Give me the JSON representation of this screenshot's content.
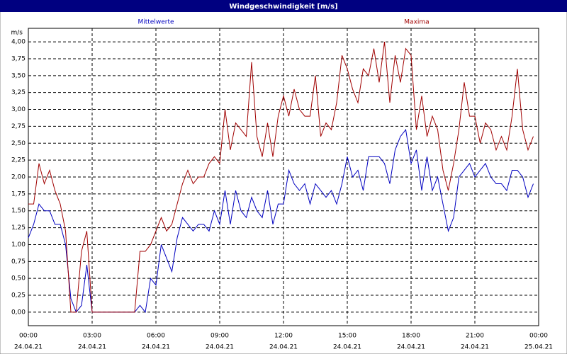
{
  "chart_data": {
    "type": "line",
    "title": "Windgeschwindigkeit [m/s]",
    "y_unit": "m/s",
    "xlim": [
      0,
      24
    ],
    "ylim": [
      -0.2,
      4.2
    ],
    "grid": true,
    "xticks": [
      {
        "value": 0,
        "label": "00:00",
        "date": "24.04.21"
      },
      {
        "value": 3,
        "label": "03:00",
        "date": "24.04.21"
      },
      {
        "value": 6,
        "label": "06:00",
        "date": "24.04.21"
      },
      {
        "value": 9,
        "label": "09:00",
        "date": "24.04.21"
      },
      {
        "value": 12,
        "label": "12:00",
        "date": "24.04.21"
      },
      {
        "value": 15,
        "label": "15:00",
        "date": "24.04.21"
      },
      {
        "value": 18,
        "label": "18:00",
        "date": "24.04.21"
      },
      {
        "value": 21,
        "label": "21:00",
        "date": "24.04.21"
      },
      {
        "value": 24,
        "label": "00:00",
        "date": "25.04.21"
      }
    ],
    "yticks": [
      {
        "value": 0,
        "label": "0,00"
      },
      {
        "value": 0.25,
        "label": "0,25"
      },
      {
        "value": 0.5,
        "label": "0,50"
      },
      {
        "value": 0.75,
        "label": "0,75"
      },
      {
        "value": 1,
        "label": "1,00"
      },
      {
        "value": 1.25,
        "label": "1,25"
      },
      {
        "value": 1.5,
        "label": "1,50"
      },
      {
        "value": 1.75,
        "label": "1,75"
      },
      {
        "value": 2,
        "label": "2,00"
      },
      {
        "value": 2.25,
        "label": "2,25"
      },
      {
        "value": 2.5,
        "label": "2,50"
      },
      {
        "value": 2.75,
        "label": "2,75"
      },
      {
        "value": 3,
        "label": "3,00"
      },
      {
        "value": 3.25,
        "label": "3,25"
      },
      {
        "value": 3.5,
        "label": "3,50"
      },
      {
        "value": 3.75,
        "label": "3,75"
      },
      {
        "value": 4,
        "label": "4,00"
      }
    ],
    "x": [
      0,
      0.25,
      0.5,
      0.75,
      1,
      1.25,
      1.5,
      1.75,
      2,
      2.25,
      2.5,
      2.75,
      3,
      3.25,
      3.5,
      3.75,
      4,
      4.25,
      4.5,
      4.75,
      5,
      5.25,
      5.5,
      5.75,
      6,
      6.25,
      6.5,
      6.75,
      7,
      7.25,
      7.5,
      7.75,
      8,
      8.25,
      8.5,
      8.75,
      9,
      9.25,
      9.5,
      9.75,
      10,
      10.25,
      10.5,
      10.75,
      11,
      11.25,
      11.5,
      11.75,
      12,
      12.25,
      12.5,
      12.75,
      13,
      13.25,
      13.5,
      13.75,
      14,
      14.25,
      14.5,
      14.75,
      15,
      15.25,
      15.5,
      15.75,
      16,
      16.25,
      16.5,
      16.75,
      17,
      17.25,
      17.5,
      17.75,
      18,
      18.25,
      18.5,
      18.75,
      19,
      19.25,
      19.5,
      19.75,
      20,
      20.25,
      20.5,
      20.75,
      21,
      21.25,
      21.5,
      21.75,
      22,
      22.25,
      22.5,
      22.75,
      23,
      23.25,
      23.5,
      23.75
    ],
    "series": [
      {
        "name": "Mittelwerte",
        "color": "#0000c0",
        "values": [
          1.1,
          1.3,
          1.6,
          1.5,
          1.5,
          1.3,
          1.3,
          1.0,
          0.2,
          0,
          0.1,
          0.7,
          0,
          0,
          0,
          0,
          0,
          0,
          0,
          0,
          0,
          0.1,
          0,
          0.5,
          0.4,
          1.0,
          0.8,
          0.6,
          1.1,
          1.4,
          1.3,
          1.2,
          1.3,
          1.3,
          1.2,
          1.5,
          1.3,
          1.8,
          1.3,
          1.8,
          1.5,
          1.4,
          1.7,
          1.5,
          1.4,
          1.8,
          1.3,
          1.6,
          1.6,
          2.1,
          1.9,
          1.8,
          1.9,
          1.6,
          1.9,
          1.8,
          1.7,
          1.8,
          1.6,
          1.9,
          2.3,
          2.0,
          2.1,
          1.8,
          2.3,
          2.3,
          2.3,
          2.2,
          1.9,
          2.4,
          2.6,
          2.7,
          2.2,
          2.4,
          1.8,
          2.3,
          1.8,
          2.0,
          1.6,
          1.2,
          1.4,
          2.0,
          2.1,
          2.2,
          2.0,
          2.1,
          2.2,
          2.0,
          1.9,
          1.9,
          1.8,
          2.1,
          2.1,
          2.0,
          1.7,
          1.9
        ]
      },
      {
        "name": "Maxima",
        "color": "#a00000",
        "values": [
          1.6,
          1.6,
          2.2,
          1.9,
          2.1,
          1.8,
          1.6,
          1.2,
          0,
          0,
          0.9,
          1.2,
          0,
          0,
          0,
          0,
          0,
          0,
          0,
          0,
          0,
          0.9,
          0.9,
          1.0,
          1.2,
          1.4,
          1.2,
          1.3,
          1.6,
          1.9,
          2.1,
          1.9,
          2.0,
          2.0,
          2.2,
          2.3,
          2.2,
          3.0,
          2.4,
          2.8,
          2.7,
          2.6,
          3.7,
          2.6,
          2.3,
          2.8,
          2.3,
          2.9,
          3.2,
          2.9,
          3.3,
          3.0,
          2.9,
          2.9,
          3.5,
          2.6,
          2.8,
          2.7,
          3.1,
          3.8,
          3.6,
          3.3,
          3.1,
          3.6,
          3.5,
          3.9,
          3.4,
          4.0,
          3.1,
          3.8,
          3.4,
          3.9,
          3.8,
          2.7,
          3.2,
          2.6,
          2.9,
          2.7,
          2.1,
          1.8,
          2.2,
          2.7,
          3.4,
          2.9,
          2.9,
          2.5,
          2.8,
          2.7,
          2.4,
          2.6,
          2.4,
          2.9,
          3.6,
          2.7,
          2.4,
          2.6
        ]
      }
    ]
  }
}
